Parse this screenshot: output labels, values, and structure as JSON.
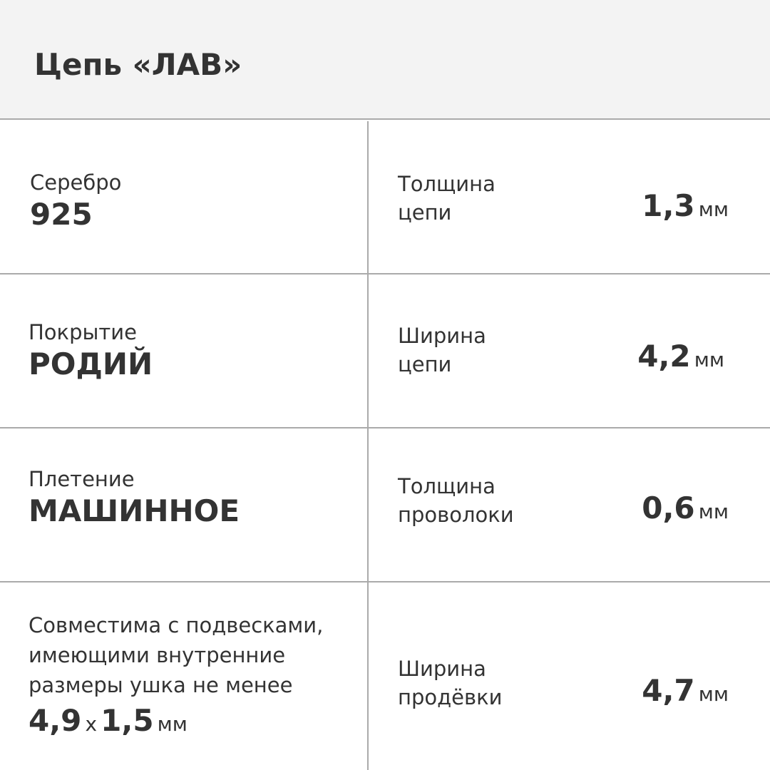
{
  "title": "Цепь «ЛАВ»",
  "left": [
    {
      "label": "Серебро",
      "value": "925"
    },
    {
      "label": "Покрытие",
      "value": "РОДИЙ"
    },
    {
      "label": "Плетение",
      "value": "МАШИННОЕ"
    },
    {
      "label_lines": [
        "Совместима с подвесками,",
        "имеющими внутренние",
        "размеры ушка не менее"
      ],
      "value_a": "4,9",
      "times": "x",
      "value_b": "1,5",
      "unit": "мм"
    }
  ],
  "right": [
    {
      "label_lines": [
        "Толщина",
        "цепи"
      ],
      "value": "1,3",
      "unit": "мм"
    },
    {
      "label_lines": [
        "Ширина",
        "цепи"
      ],
      "value": "4,2",
      "unit": "мм"
    },
    {
      "label_lines": [
        "Толщина",
        "проволоки"
      ],
      "value": "0,6",
      "unit": "мм"
    },
    {
      "label_lines": [
        "Ширина",
        "продёвки"
      ],
      "value": "4,7",
      "unit": "мм"
    }
  ]
}
